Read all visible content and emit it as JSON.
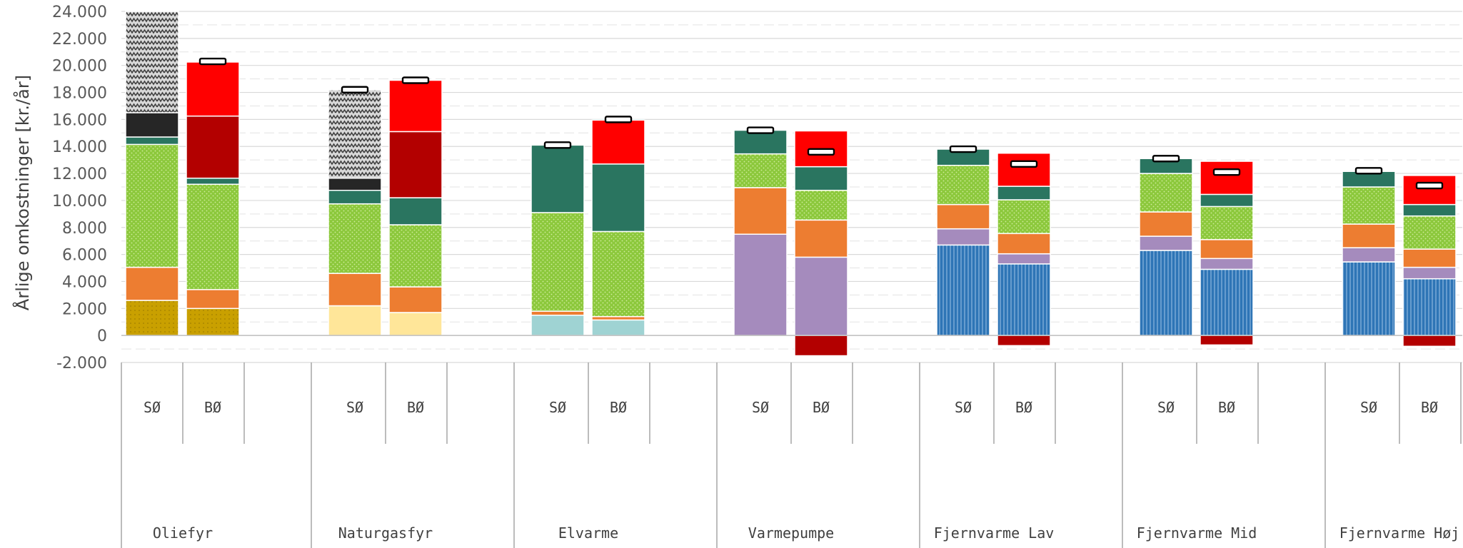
{
  "chart_data": {
    "type": "bar",
    "stacked": true,
    "ylabel": "Årlige omkostninger [kr./år]",
    "ylim": [
      -2000,
      24000
    ],
    "yticks": [
      -2000,
      0,
      2000,
      4000,
      6000,
      8000,
      10000,
      12000,
      14000,
      16000,
      18000,
      20000,
      22000,
      24000
    ],
    "ytick_labels": [
      "-2.000",
      "0",
      "2.000",
      "4.000",
      "6.000",
      "8.000",
      "10.000",
      "12.000",
      "14.000",
      "16.000",
      "18.000",
      "20.000",
      "22.000",
      "24.000"
    ],
    "grid": true,
    "legend": "none",
    "groups": [
      "Oliefyr",
      "Naturgasfyr",
      "Elvarme",
      "Varmepumpe",
      "Fjernvarme Lav",
      "Fjernvarme Mid",
      "Fjernvarme Høj"
    ],
    "subcategories": [
      "SØ",
      "BØ"
    ],
    "segment_colors": {
      "fuel_oil": "#c9a000",
      "gas": "#ffe699",
      "electricity": "#9fd3d3",
      "heat_pump": "#a58bbd",
      "district_heating": "#2e75b6",
      "purple": "#a58bbd",
      "orange": "#ed7d31",
      "green": "#8cc83c",
      "teal": "#2a7560",
      "black": "#262626",
      "dark_red": "#b30000",
      "red": "#ff0000",
      "hatched": "#a6a6a6"
    },
    "bars": [
      {
        "group": "Oliefyr",
        "label": "SØ",
        "total_marker": null,
        "segments": [
          {
            "key": "fuel_oil",
            "value": 2600
          },
          {
            "key": "orange",
            "value": 2450
          },
          {
            "key": "green",
            "value": 9100
          },
          {
            "key": "teal",
            "value": 550
          },
          {
            "key": "black",
            "value": 1800
          },
          {
            "key": "hatched",
            "value": 7500
          }
        ]
      },
      {
        "group": "Oliefyr",
        "label": "BØ",
        "total_marker": 20300,
        "segments": [
          {
            "key": "fuel_oil",
            "value": 2000
          },
          {
            "key": "orange",
            "value": 1400
          },
          {
            "key": "green",
            "value": 7800
          },
          {
            "key": "teal",
            "value": 450
          },
          {
            "key": "dark_red",
            "value": 4600
          },
          {
            "key": "red",
            "value": 4000
          }
        ]
      },
      {
        "group": "Naturgasfyr",
        "label": "SØ",
        "total_marker": 18200,
        "segments": [
          {
            "key": "gas",
            "value": 2200
          },
          {
            "key": "orange",
            "value": 2400
          },
          {
            "key": "green",
            "value": 5150
          },
          {
            "key": "teal",
            "value": 1000
          },
          {
            "key": "black",
            "value": 900
          },
          {
            "key": "hatched",
            "value": 6550
          }
        ]
      },
      {
        "group": "Naturgasfyr",
        "label": "BØ",
        "total_marker": 18900,
        "segments": [
          {
            "key": "gas",
            "value": 1700
          },
          {
            "key": "orange",
            "value": 1900
          },
          {
            "key": "green",
            "value": 4600
          },
          {
            "key": "teal",
            "value": 2000
          },
          {
            "key": "dark_red",
            "value": 4900
          },
          {
            "key": "red",
            "value": 3800
          }
        ]
      },
      {
        "group": "Elvarme",
        "label": "SØ",
        "total_marker": 14100,
        "segments": [
          {
            "key": "electricity",
            "value": 1500
          },
          {
            "key": "orange",
            "value": 300
          },
          {
            "key": "green",
            "value": 7300
          },
          {
            "key": "teal",
            "value": 5000
          }
        ]
      },
      {
        "group": "Elvarme",
        "label": "BØ",
        "total_marker": 16000,
        "segments": [
          {
            "key": "electricity",
            "value": 1150
          },
          {
            "key": "orange",
            "value": 250
          },
          {
            "key": "green",
            "value": 6300
          },
          {
            "key": "teal",
            "value": 5000
          },
          {
            "key": "red",
            "value": 3250
          }
        ]
      },
      {
        "group": "Varmepumpe",
        "label": "SØ",
        "total_marker": 15200,
        "segments": [
          {
            "key": "heat_pump",
            "value": 7500
          },
          {
            "key": "orange",
            "value": 3450
          },
          {
            "key": "green",
            "value": 2500
          },
          {
            "key": "teal",
            "value": 1750
          }
        ]
      },
      {
        "group": "Varmepumpe",
        "label": "BØ",
        "total_marker": 13600,
        "segments": [
          {
            "key": "heat_pump",
            "value": 5800
          },
          {
            "key": "orange",
            "value": 2750
          },
          {
            "key": "green",
            "value": 2200
          },
          {
            "key": "teal",
            "value": 1750
          },
          {
            "key": "red",
            "value": 2650
          },
          {
            "key": "dark_red",
            "value": -1500
          }
        ]
      },
      {
        "group": "Fjernvarme Lav",
        "label": "SØ",
        "total_marker": 13800,
        "segments": [
          {
            "key": "district_heating",
            "value": 6700
          },
          {
            "key": "purple",
            "value": 1200
          },
          {
            "key": "orange",
            "value": 1800
          },
          {
            "key": "green",
            "value": 2900
          },
          {
            "key": "teal",
            "value": 1200
          }
        ]
      },
      {
        "group": "Fjernvarme Lav",
        "label": "BØ",
        "total_marker": 12700,
        "segments": [
          {
            "key": "district_heating",
            "value": 5300
          },
          {
            "key": "purple",
            "value": 750
          },
          {
            "key": "orange",
            "value": 1500
          },
          {
            "key": "green",
            "value": 2500
          },
          {
            "key": "teal",
            "value": 1000
          },
          {
            "key": "red",
            "value": 2450
          },
          {
            "key": "dark_red",
            "value": -750
          }
        ]
      },
      {
        "group": "Fjernvarme Mid",
        "label": "SØ",
        "total_marker": 13100,
        "segments": [
          {
            "key": "district_heating",
            "value": 6300
          },
          {
            "key": "purple",
            "value": 1050
          },
          {
            "key": "orange",
            "value": 1800
          },
          {
            "key": "green",
            "value": 2850
          },
          {
            "key": "teal",
            "value": 1100
          }
        ]
      },
      {
        "group": "Fjernvarme Mid",
        "label": "BØ",
        "total_marker": 12100,
        "segments": [
          {
            "key": "district_heating",
            "value": 4900
          },
          {
            "key": "purple",
            "value": 800
          },
          {
            "key": "orange",
            "value": 1400
          },
          {
            "key": "green",
            "value": 2450
          },
          {
            "key": "teal",
            "value": 900
          },
          {
            "key": "red",
            "value": 2450
          },
          {
            "key": "dark_red",
            "value": -700
          }
        ]
      },
      {
        "group": "Fjernvarme Høj",
        "label": "SØ",
        "total_marker": 12200,
        "segments": [
          {
            "key": "district_heating",
            "value": 5450
          },
          {
            "key": "purple",
            "value": 1050
          },
          {
            "key": "orange",
            "value": 1750
          },
          {
            "key": "green",
            "value": 2750
          },
          {
            "key": "teal",
            "value": 1150
          }
        ]
      },
      {
        "group": "Fjernvarme Høj",
        "label": "BØ",
        "total_marker": 11100,
        "segments": [
          {
            "key": "district_heating",
            "value": 4200
          },
          {
            "key": "purple",
            "value": 850
          },
          {
            "key": "orange",
            "value": 1350
          },
          {
            "key": "green",
            "value": 2450
          },
          {
            "key": "teal",
            "value": 850
          },
          {
            "key": "red",
            "value": 2150
          },
          {
            "key": "dark_red",
            "value": -800
          }
        ]
      }
    ]
  }
}
